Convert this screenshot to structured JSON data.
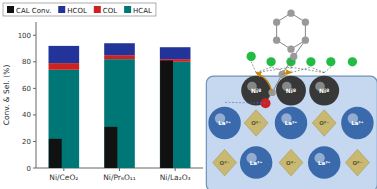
{
  "chart_data": {
    "type": "bar",
    "stacked": true,
    "ylabel": "Conv. & Sel. (%)",
    "categories": [
      "Ni/CeO₂",
      "Ni/Pr₆O₁₁",
      "Ni/La₂O₃"
    ],
    "series": [
      {
        "name": "CAL Conv.",
        "type": "bar",
        "color": "#111111",
        "values": [
          22,
          31,
          81
        ]
      },
      {
        "name": "HCOL",
        "type": "stacked",
        "color": "#223399",
        "values": [
          13,
          9,
          9
        ]
      },
      {
        "name": "COL",
        "type": "stacked",
        "color": "#cc2222",
        "values": [
          5,
          3,
          2
        ]
      },
      {
        "name": "HCAL",
        "type": "stacked",
        "color": "#007777",
        "values": [
          74,
          82,
          80
        ]
      }
    ],
    "ylim": [
      0,
      110
    ],
    "yticks": [
      0,
      20,
      40,
      60,
      80,
      100
    ],
    "grid": false,
    "legend": "top",
    "annotations": [
      "La³⁺",
      "O²⁻",
      "Niº"
    ]
  }
}
